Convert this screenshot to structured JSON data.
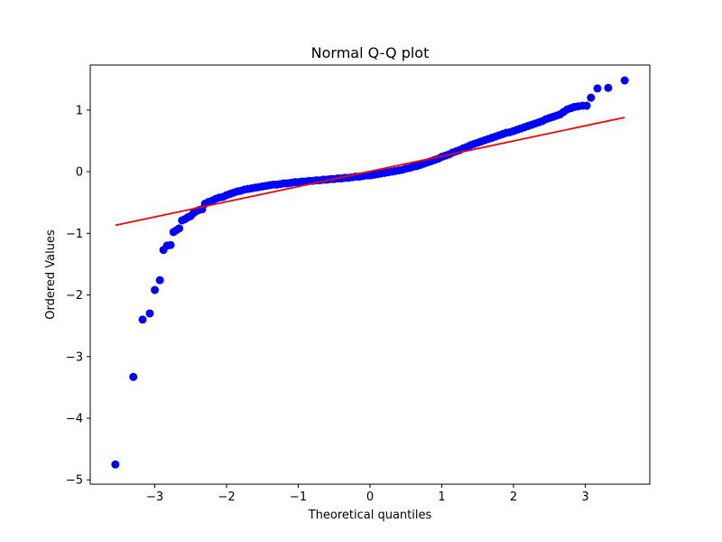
{
  "chart_data": {
    "type": "scatter",
    "title": "Normal Q-Q plot",
    "xlabel": "Theoretical quantiles",
    "ylabel": "Ordered Values",
    "xlim": [
      -3.9,
      3.9
    ],
    "ylim": [
      -5.07,
      1.73
    ],
    "xticks": [
      -3,
      -2,
      -1,
      0,
      1,
      2,
      3
    ],
    "xtick_labels": [
      "−3",
      "−2",
      "−1",
      "0",
      "1",
      "2",
      "3"
    ],
    "yticks": [
      1,
      0,
      -1,
      -2,
      -3,
      -4,
      -5
    ],
    "ytick_labels": [
      "1",
      "0",
      "−1",
      "−2",
      "−3",
      "−4",
      "−5"
    ],
    "grid": false,
    "legend": "none",
    "point_color": "#0000ff",
    "line_color": "#ff0000",
    "points": [
      [
        -3.55,
        -4.75
      ],
      [
        -3.3,
        -3.33
      ],
      [
        -3.17,
        -2.4
      ],
      [
        -3.07,
        -2.3
      ],
      [
        -3.0,
        -1.92
      ],
      [
        -2.93,
        -1.76
      ],
      [
        -2.88,
        -1.27
      ],
      [
        -2.83,
        -1.2
      ],
      [
        -2.78,
        -1.19
      ],
      [
        -2.74,
        -0.98
      ],
      [
        -2.7,
        -0.95
      ],
      [
        -2.66,
        -0.92
      ],
      [
        -2.62,
        -0.79
      ],
      [
        -2.58,
        -0.77
      ],
      [
        -2.54,
        -0.74
      ],
      [
        -2.5,
        -0.72
      ],
      [
        -2.46,
        -0.67
      ],
      [
        -2.42,
        -0.64
      ],
      [
        -2.38,
        -0.62
      ],
      [
        -2.34,
        -0.61
      ],
      [
        -2.3,
        -0.52
      ],
      [
        -2.25,
        -0.49
      ],
      [
        -2.2,
        -0.47
      ],
      [
        -2.15,
        -0.44
      ],
      [
        -2.1,
        -0.42
      ],
      [
        -2.05,
        -0.41
      ],
      [
        -2.0,
        -0.38
      ],
      [
        -1.95,
        -0.36
      ],
      [
        -1.9,
        -0.34
      ],
      [
        -1.85,
        -0.32
      ],
      [
        -1.8,
        -0.31
      ],
      [
        -1.75,
        -0.29
      ],
      [
        -1.7,
        -0.28
      ],
      [
        -1.65,
        -0.27
      ],
      [
        -1.6,
        -0.26
      ],
      [
        -1.55,
        -0.25
      ],
      [
        -1.5,
        -0.24
      ],
      [
        -1.45,
        -0.23
      ],
      [
        -1.4,
        -0.22
      ],
      [
        -1.35,
        -0.21
      ],
      [
        -1.3,
        -0.21
      ],
      [
        -1.25,
        -0.2
      ],
      [
        -1.2,
        -0.19
      ],
      [
        -1.15,
        -0.19
      ],
      [
        -1.1,
        -0.18
      ],
      [
        -1.05,
        -0.17
      ],
      [
        -1.0,
        -0.17
      ],
      [
        -0.95,
        -0.16
      ],
      [
        -0.9,
        -0.16
      ],
      [
        -0.85,
        -0.15
      ],
      [
        -0.8,
        -0.15
      ],
      [
        -0.75,
        -0.14
      ],
      [
        -0.7,
        -0.14
      ],
      [
        -0.65,
        -0.13
      ],
      [
        -0.6,
        -0.13
      ],
      [
        -0.55,
        -0.12
      ],
      [
        -0.5,
        -0.12
      ],
      [
        -0.45,
        -0.11
      ],
      [
        -0.4,
        -0.11
      ],
      [
        -0.35,
        -0.1
      ],
      [
        -0.3,
        -0.1
      ],
      [
        -0.25,
        -0.09
      ],
      [
        -0.2,
        -0.08
      ],
      [
        -0.15,
        -0.08
      ],
      [
        -0.1,
        -0.07
      ],
      [
        -0.05,
        -0.06
      ],
      [
        0.0,
        -0.06
      ],
      [
        0.05,
        -0.05
      ],
      [
        0.1,
        -0.04
      ],
      [
        0.15,
        -0.03
      ],
      [
        0.2,
        -0.02
      ],
      [
        0.25,
        -0.01
      ],
      [
        0.3,
        0.0
      ],
      [
        0.35,
        0.01
      ],
      [
        0.4,
        0.02
      ],
      [
        0.45,
        0.03
      ],
      [
        0.5,
        0.05
      ],
      [
        0.55,
        0.06
      ],
      [
        0.6,
        0.08
      ],
      [
        0.65,
        0.09
      ],
      [
        0.7,
        0.11
      ],
      [
        0.75,
        0.13
      ],
      [
        0.8,
        0.15
      ],
      [
        0.85,
        0.17
      ],
      [
        0.9,
        0.19
      ],
      [
        0.95,
        0.21
      ],
      [
        1.0,
        0.24
      ],
      [
        1.05,
        0.26
      ],
      [
        1.1,
        0.28
      ],
      [
        1.15,
        0.31
      ],
      [
        1.2,
        0.33
      ],
      [
        1.25,
        0.35
      ],
      [
        1.3,
        0.38
      ],
      [
        1.35,
        0.4
      ],
      [
        1.4,
        0.43
      ],
      [
        1.45,
        0.45
      ],
      [
        1.5,
        0.47
      ],
      [
        1.55,
        0.49
      ],
      [
        1.6,
        0.51
      ],
      [
        1.65,
        0.53
      ],
      [
        1.7,
        0.55
      ],
      [
        1.75,
        0.57
      ],
      [
        1.8,
        0.59
      ],
      [
        1.85,
        0.61
      ],
      [
        1.9,
        0.63
      ],
      [
        1.95,
        0.64
      ],
      [
        2.0,
        0.66
      ],
      [
        2.05,
        0.68
      ],
      [
        2.1,
        0.7
      ],
      [
        2.15,
        0.72
      ],
      [
        2.2,
        0.74
      ],
      [
        2.25,
        0.76
      ],
      [
        2.3,
        0.78
      ],
      [
        2.35,
        0.8
      ],
      [
        2.4,
        0.82
      ],
      [
        2.45,
        0.85
      ],
      [
        2.5,
        0.87
      ],
      [
        2.55,
        0.89
      ],
      [
        2.6,
        0.91
      ],
      [
        2.65,
        0.93
      ],
      [
        2.7,
        0.97
      ],
      [
        2.75,
        1.01
      ],
      [
        2.8,
        1.03
      ],
      [
        2.85,
        1.05
      ],
      [
        2.9,
        1.06
      ],
      [
        2.96,
        1.07
      ],
      [
        3.02,
        1.07
      ],
      [
        3.08,
        1.2
      ],
      [
        3.17,
        1.35
      ],
      [
        3.32,
        1.36
      ],
      [
        3.55,
        1.48
      ]
    ],
    "fit_line": {
      "x": [
        -3.55,
        3.55
      ],
      "y": [
        -0.87,
        0.88
      ]
    }
  }
}
